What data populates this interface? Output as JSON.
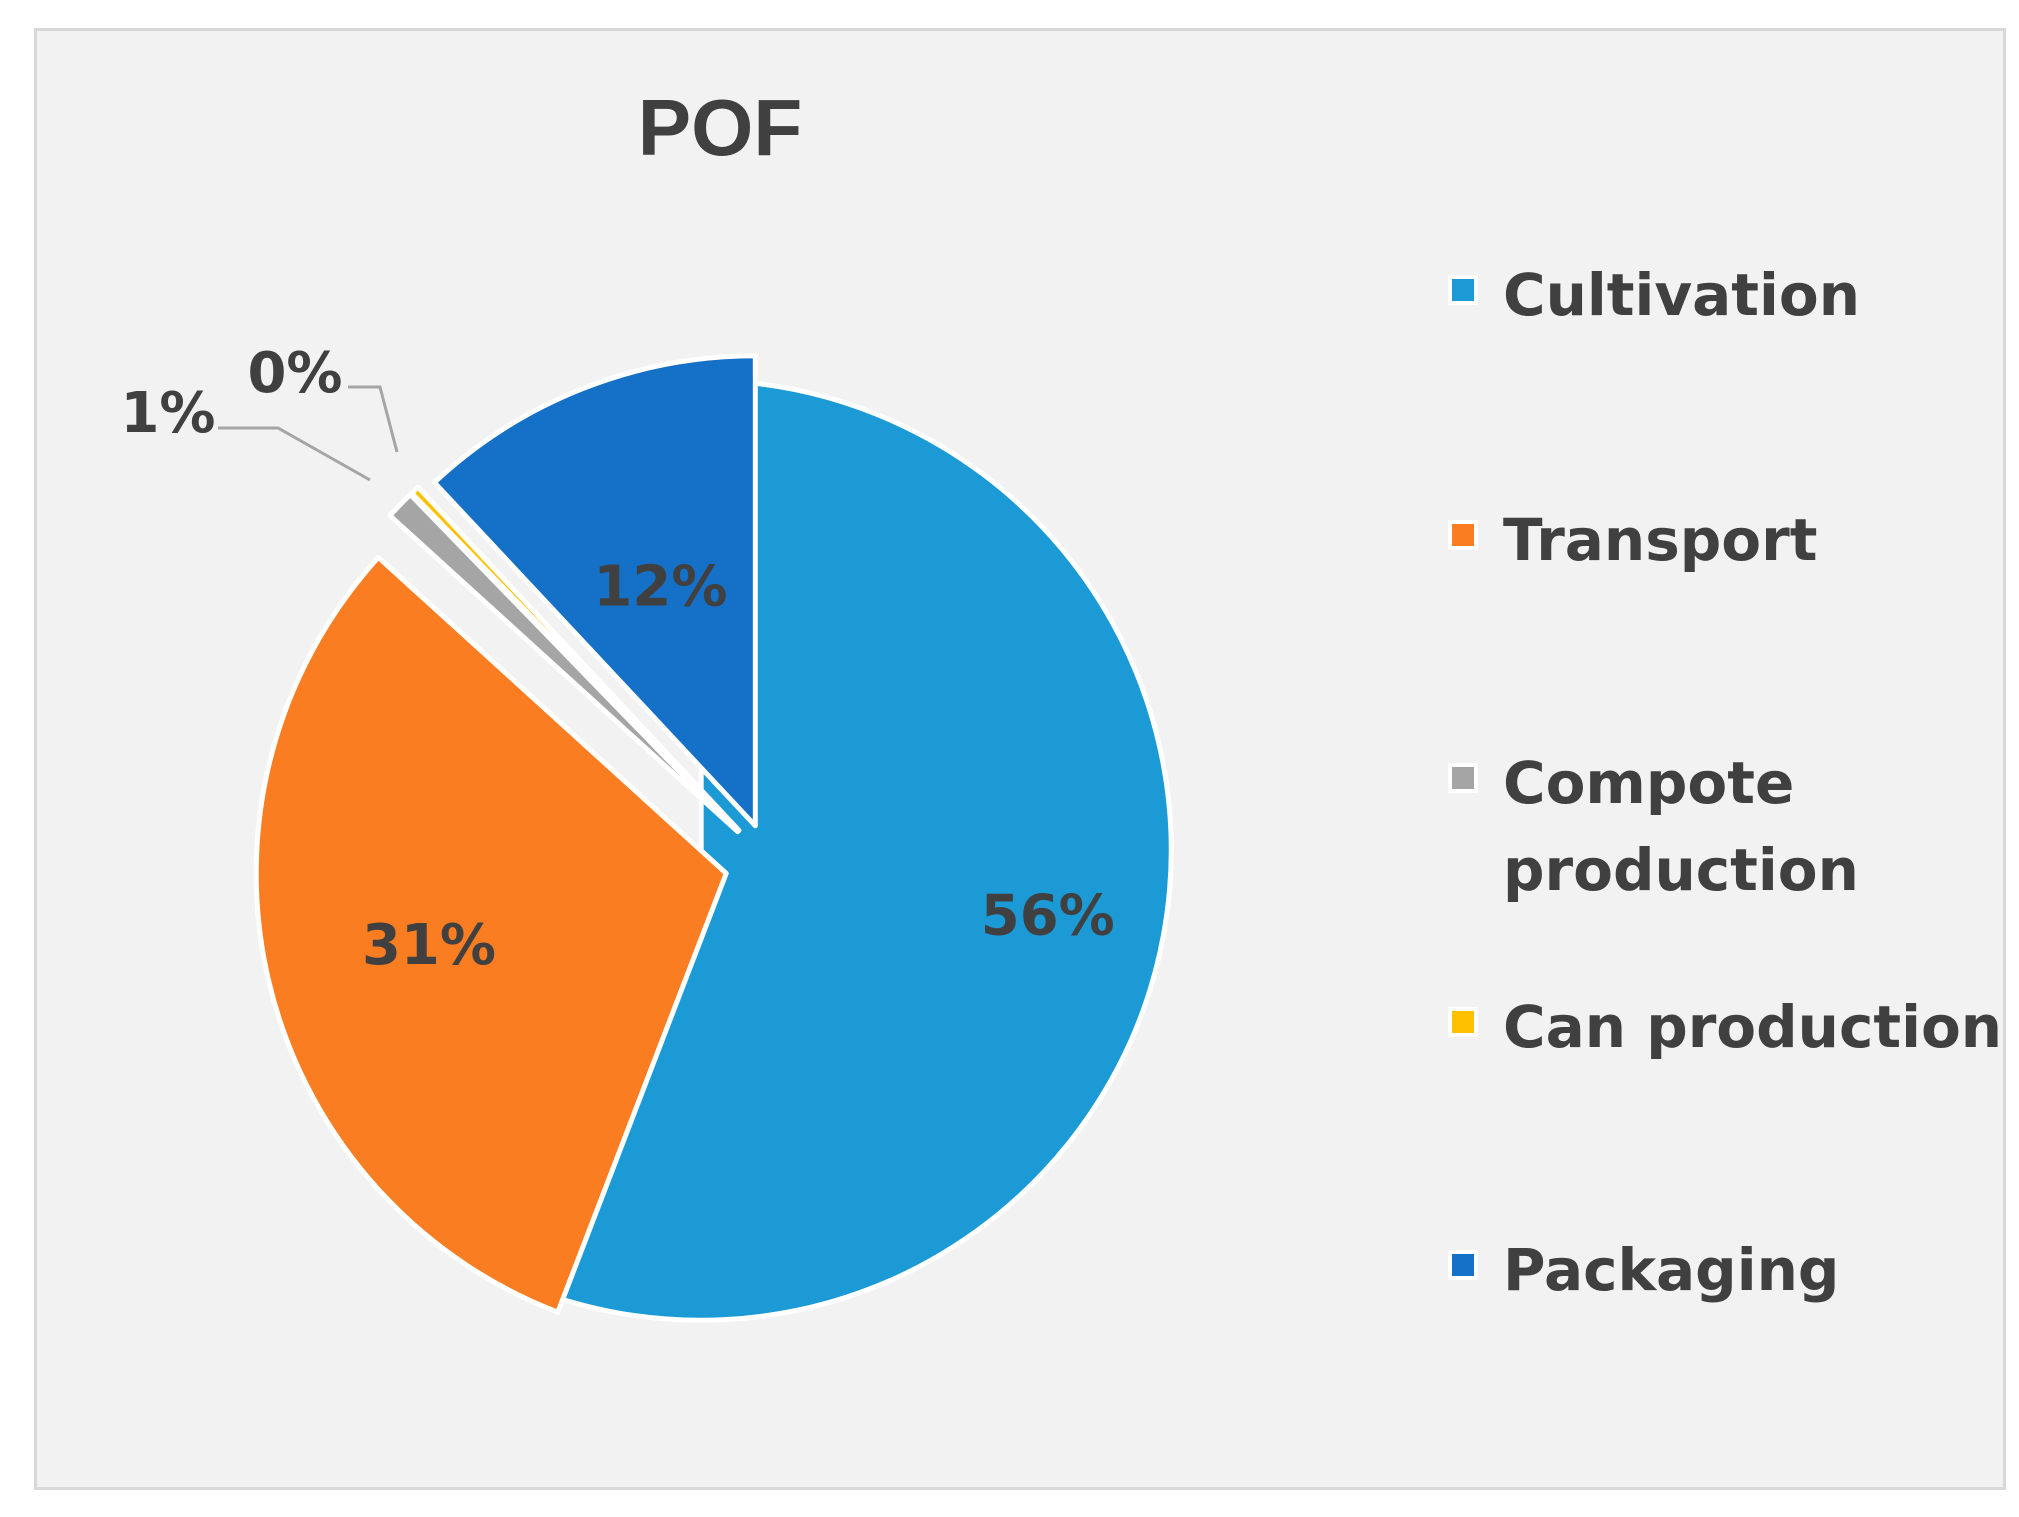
{
  "chart_data": {
    "type": "pie",
    "title": "POF",
    "categories": [
      "Cultivation",
      "Transport",
      "Compote production",
      "Can production",
      "Packaging"
    ],
    "values": [
      56,
      31,
      1,
      0.3,
      12
    ],
    "data_labels": [
      "56%",
      "31%",
      "1%",
      "0%",
      "12%"
    ],
    "colors": [
      "#1b9ad6",
      "#fb7d22",
      "#a5a5a5",
      "#ffc000",
      "#1570c7"
    ],
    "legend": {
      "position": "right",
      "entries": [
        {
          "label_lines": [
            "Cultivation"
          ]
        },
        {
          "label_lines": [
            "Transport"
          ]
        },
        {
          "label_lines": [
            "Compote",
            "production"
          ]
        },
        {
          "label_lines": [
            "Can production"
          ]
        },
        {
          "label_lines": [
            "Packaging"
          ]
        }
      ]
    },
    "exploded": true
  }
}
